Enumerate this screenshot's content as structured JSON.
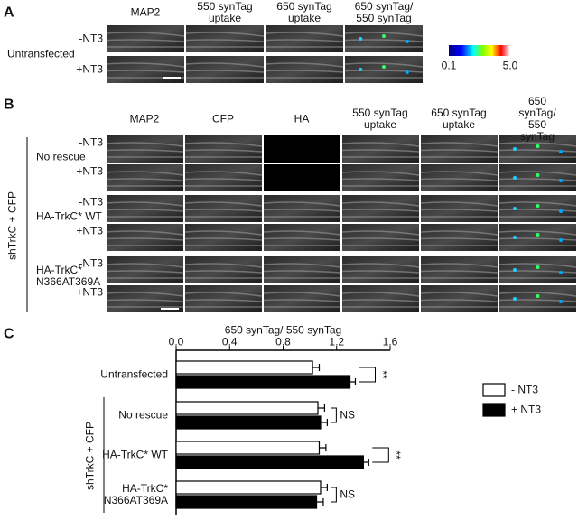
{
  "panel_a": {
    "label": "A",
    "columns": [
      "MAP2",
      "550 synTag\nuptake",
      "650 synTag\nuptake",
      "650 synTag/\n550 synTag"
    ],
    "rows": [
      "-NT3",
      "+NT3"
    ],
    "group": "Untransfected",
    "colorbar": {
      "min_label": "0.1",
      "max_label": "5.0"
    }
  },
  "panel_b": {
    "label": "B",
    "columns": [
      "MAP2",
      "CFP",
      "HA",
      "550 synTag\nuptake",
      "650 synTag\nuptake",
      "650 synTag/\n550 synTag"
    ],
    "rows": [
      "-NT3",
      "+NT3",
      "-NT3",
      "+NT3",
      "-NT3",
      "+NT3"
    ],
    "groups": [
      "No rescue",
      "HA-TrkC* WT",
      "HA-TrkC*\nN366AT369A"
    ],
    "group_label": "shTrkC + CFP"
  },
  "chart_data": {
    "type": "bar",
    "orientation": "horizontal",
    "panel_label": "C",
    "x_label": "650 synTag/ 550 synTag",
    "categories": [
      "Untransfected",
      "No rescue",
      "HA-TrkC* WT",
      "HA-TrkC*\nN366AT369A"
    ],
    "group_label": "shTrkC + CFP",
    "series": [
      {
        "name": "- NT3",
        "color": "#ffffff",
        "values": [
          1.02,
          1.06,
          1.07,
          1.08
        ],
        "errors": [
          0.05,
          0.05,
          0.05,
          0.05
        ]
      },
      {
        "name": "+ NT3",
        "color": "#000000",
        "values": [
          1.3,
          1.08,
          1.4,
          1.05
        ],
        "errors": [
          0.04,
          0.05,
          0.04,
          0.05
        ]
      }
    ],
    "annotations": [
      "**",
      "NS",
      "**",
      "NS"
    ],
    "xlim": [
      0,
      1.6
    ],
    "xticks": [
      {
        "value": 0,
        "label": "0.0"
      },
      0.4,
      0.8,
      1.2,
      1.6
    ],
    "legend": "right"
  }
}
